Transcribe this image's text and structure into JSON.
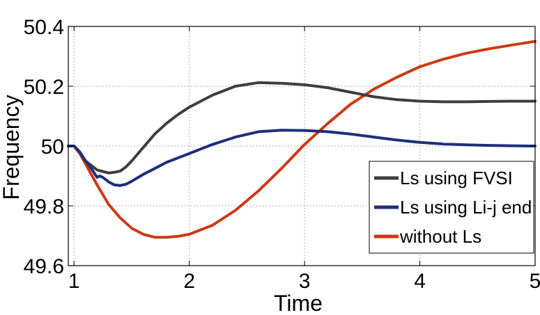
{
  "chart_data": {
    "type": "line",
    "title": "",
    "xlabel": "Time",
    "ylabel": "Frequency",
    "xlim": [
      0.95,
      5
    ],
    "ylim": [
      49.6,
      50.4
    ],
    "grid": true,
    "legend_position": "bottom-right",
    "x_ticks": [
      "1",
      "2",
      "3",
      "4",
      "5"
    ],
    "y_ticks": [
      "49.6",
      "49.8",
      "50",
      "50.2",
      "50.4"
    ],
    "series": [
      {
        "name": "Ls using FVSI",
        "color": "#3d3d3d",
        "x": [
          0.95,
          1.0,
          1.05,
          1.1,
          1.15,
          1.2,
          1.25,
          1.3,
          1.35,
          1.4,
          1.45,
          1.5,
          1.6,
          1.7,
          1.8,
          1.9,
          2.0,
          2.2,
          2.4,
          2.6,
          2.8,
          3.0,
          3.2,
          3.4,
          3.6,
          3.8,
          4.0,
          4.2,
          4.4,
          4.6,
          4.8,
          5.0
        ],
        "y": [
          50.0,
          50.0,
          49.98,
          49.95,
          49.935,
          49.92,
          49.915,
          49.91,
          49.912,
          49.916,
          49.93,
          49.95,
          49.995,
          50.04,
          50.075,
          50.105,
          50.13,
          50.17,
          50.2,
          50.212,
          50.21,
          50.205,
          50.195,
          50.18,
          50.165,
          50.155,
          50.15,
          50.148,
          50.148,
          50.149,
          50.15,
          50.15
        ]
      },
      {
        "name": "Ls using Li-j end",
        "color": "#1f2e7a",
        "x": [
          0.95,
          1.0,
          1.05,
          1.1,
          1.15,
          1.2,
          1.22,
          1.25,
          1.3,
          1.35,
          1.4,
          1.45,
          1.5,
          1.6,
          1.7,
          1.8,
          2.0,
          2.2,
          2.4,
          2.6,
          2.8,
          3.0,
          3.2,
          3.4,
          3.6,
          3.8,
          4.0,
          4.2,
          4.4,
          4.6,
          4.8,
          5.0
        ],
        "y": [
          50.0,
          50.0,
          49.98,
          49.95,
          49.925,
          49.895,
          49.9,
          49.895,
          49.88,
          49.87,
          49.868,
          49.872,
          49.882,
          49.905,
          49.925,
          49.945,
          49.975,
          50.005,
          50.03,
          50.048,
          50.053,
          50.052,
          50.048,
          50.04,
          50.03,
          50.02,
          50.012,
          50.007,
          50.004,
          50.002,
          50.001,
          50.0
        ]
      },
      {
        "name": "without Ls",
        "color": "#cc3a12",
        "x": [
          0.95,
          1.0,
          1.05,
          1.1,
          1.2,
          1.3,
          1.4,
          1.5,
          1.6,
          1.7,
          1.8,
          1.9,
          2.0,
          2.2,
          2.4,
          2.6,
          2.8,
          3.0,
          3.2,
          3.4,
          3.6,
          3.8,
          4.0,
          4.2,
          4.4,
          4.6,
          4.8,
          5.0
        ],
        "y": [
          50.0,
          50.0,
          49.975,
          49.94,
          49.87,
          49.805,
          49.76,
          49.725,
          49.705,
          49.695,
          49.695,
          49.698,
          49.705,
          49.735,
          49.785,
          49.85,
          49.925,
          50.005,
          50.075,
          50.14,
          50.19,
          50.23,
          50.265,
          50.29,
          50.31,
          50.325,
          50.338,
          50.35
        ]
      }
    ]
  }
}
